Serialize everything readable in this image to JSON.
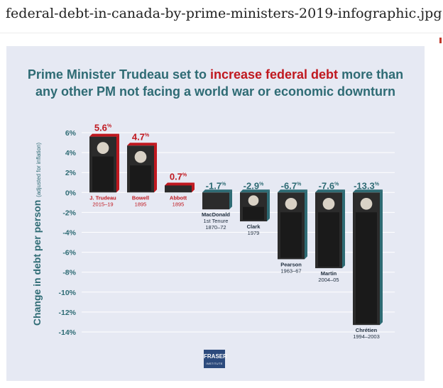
{
  "page": {
    "filename": "federal-debt-in-canada-by-prime-ministers-2019-infographic.jpg"
  },
  "infographic": {
    "title_line1_prefix": "Prime Minister Trudeau set to ",
    "title_highlight": "increase federal debt",
    "title_line1_suffix": " more than",
    "title_line2": "any other PM not facing a world war or economic downturn",
    "logo_main": "FRASER",
    "logo_sub": "INSTITUTE"
  },
  "colors": {
    "increase": "#c0181f",
    "decrease": "#2e6b74",
    "label": "#c0181f",
    "panel": "#e6e9f3",
    "portrait": "#2b2b2b"
  },
  "chart_data": {
    "type": "bar",
    "title": "Prime Minister Trudeau set to increase federal debt more than any other PM not facing a world war or economic downturn",
    "ylabel": "Change in debt per person",
    "ylabel_sub": "(adjusted for inflation)",
    "xlabel": "",
    "ylim": [
      -14,
      6
    ],
    "yticks": [
      "6%",
      "4%",
      "2%",
      "0%",
      "-2%",
      "-4%",
      "-6%",
      "-8%",
      "-10%",
      "-12%",
      "-14%"
    ],
    "grid": true,
    "categories": [
      {
        "name": "J. Trudeau",
        "years": "2015–19"
      },
      {
        "name": "Bowell",
        "years": "1895"
      },
      {
        "name": "Abbott",
        "years": "1895"
      },
      {
        "name": "MacDonald",
        "sub": "1st Tenure",
        "years": "1870–72"
      },
      {
        "name": "Clark",
        "years": "1979"
      },
      {
        "name": "Pearson",
        "years": "1963–67"
      },
      {
        "name": "Martin",
        "years": "2004–05"
      },
      {
        "name": "Chrétien",
        "years": "1994–2003"
      }
    ],
    "values": [
      5.6,
      4.7,
      0.7,
      -1.7,
      -2.9,
      -6.7,
      -7.6,
      -13.3
    ],
    "value_labels": [
      "5.6",
      "4.7",
      "0.7",
      "-1.7",
      "-2.9",
      "-6.7",
      "-7.6",
      "-13.3"
    ],
    "unit": "%"
  }
}
